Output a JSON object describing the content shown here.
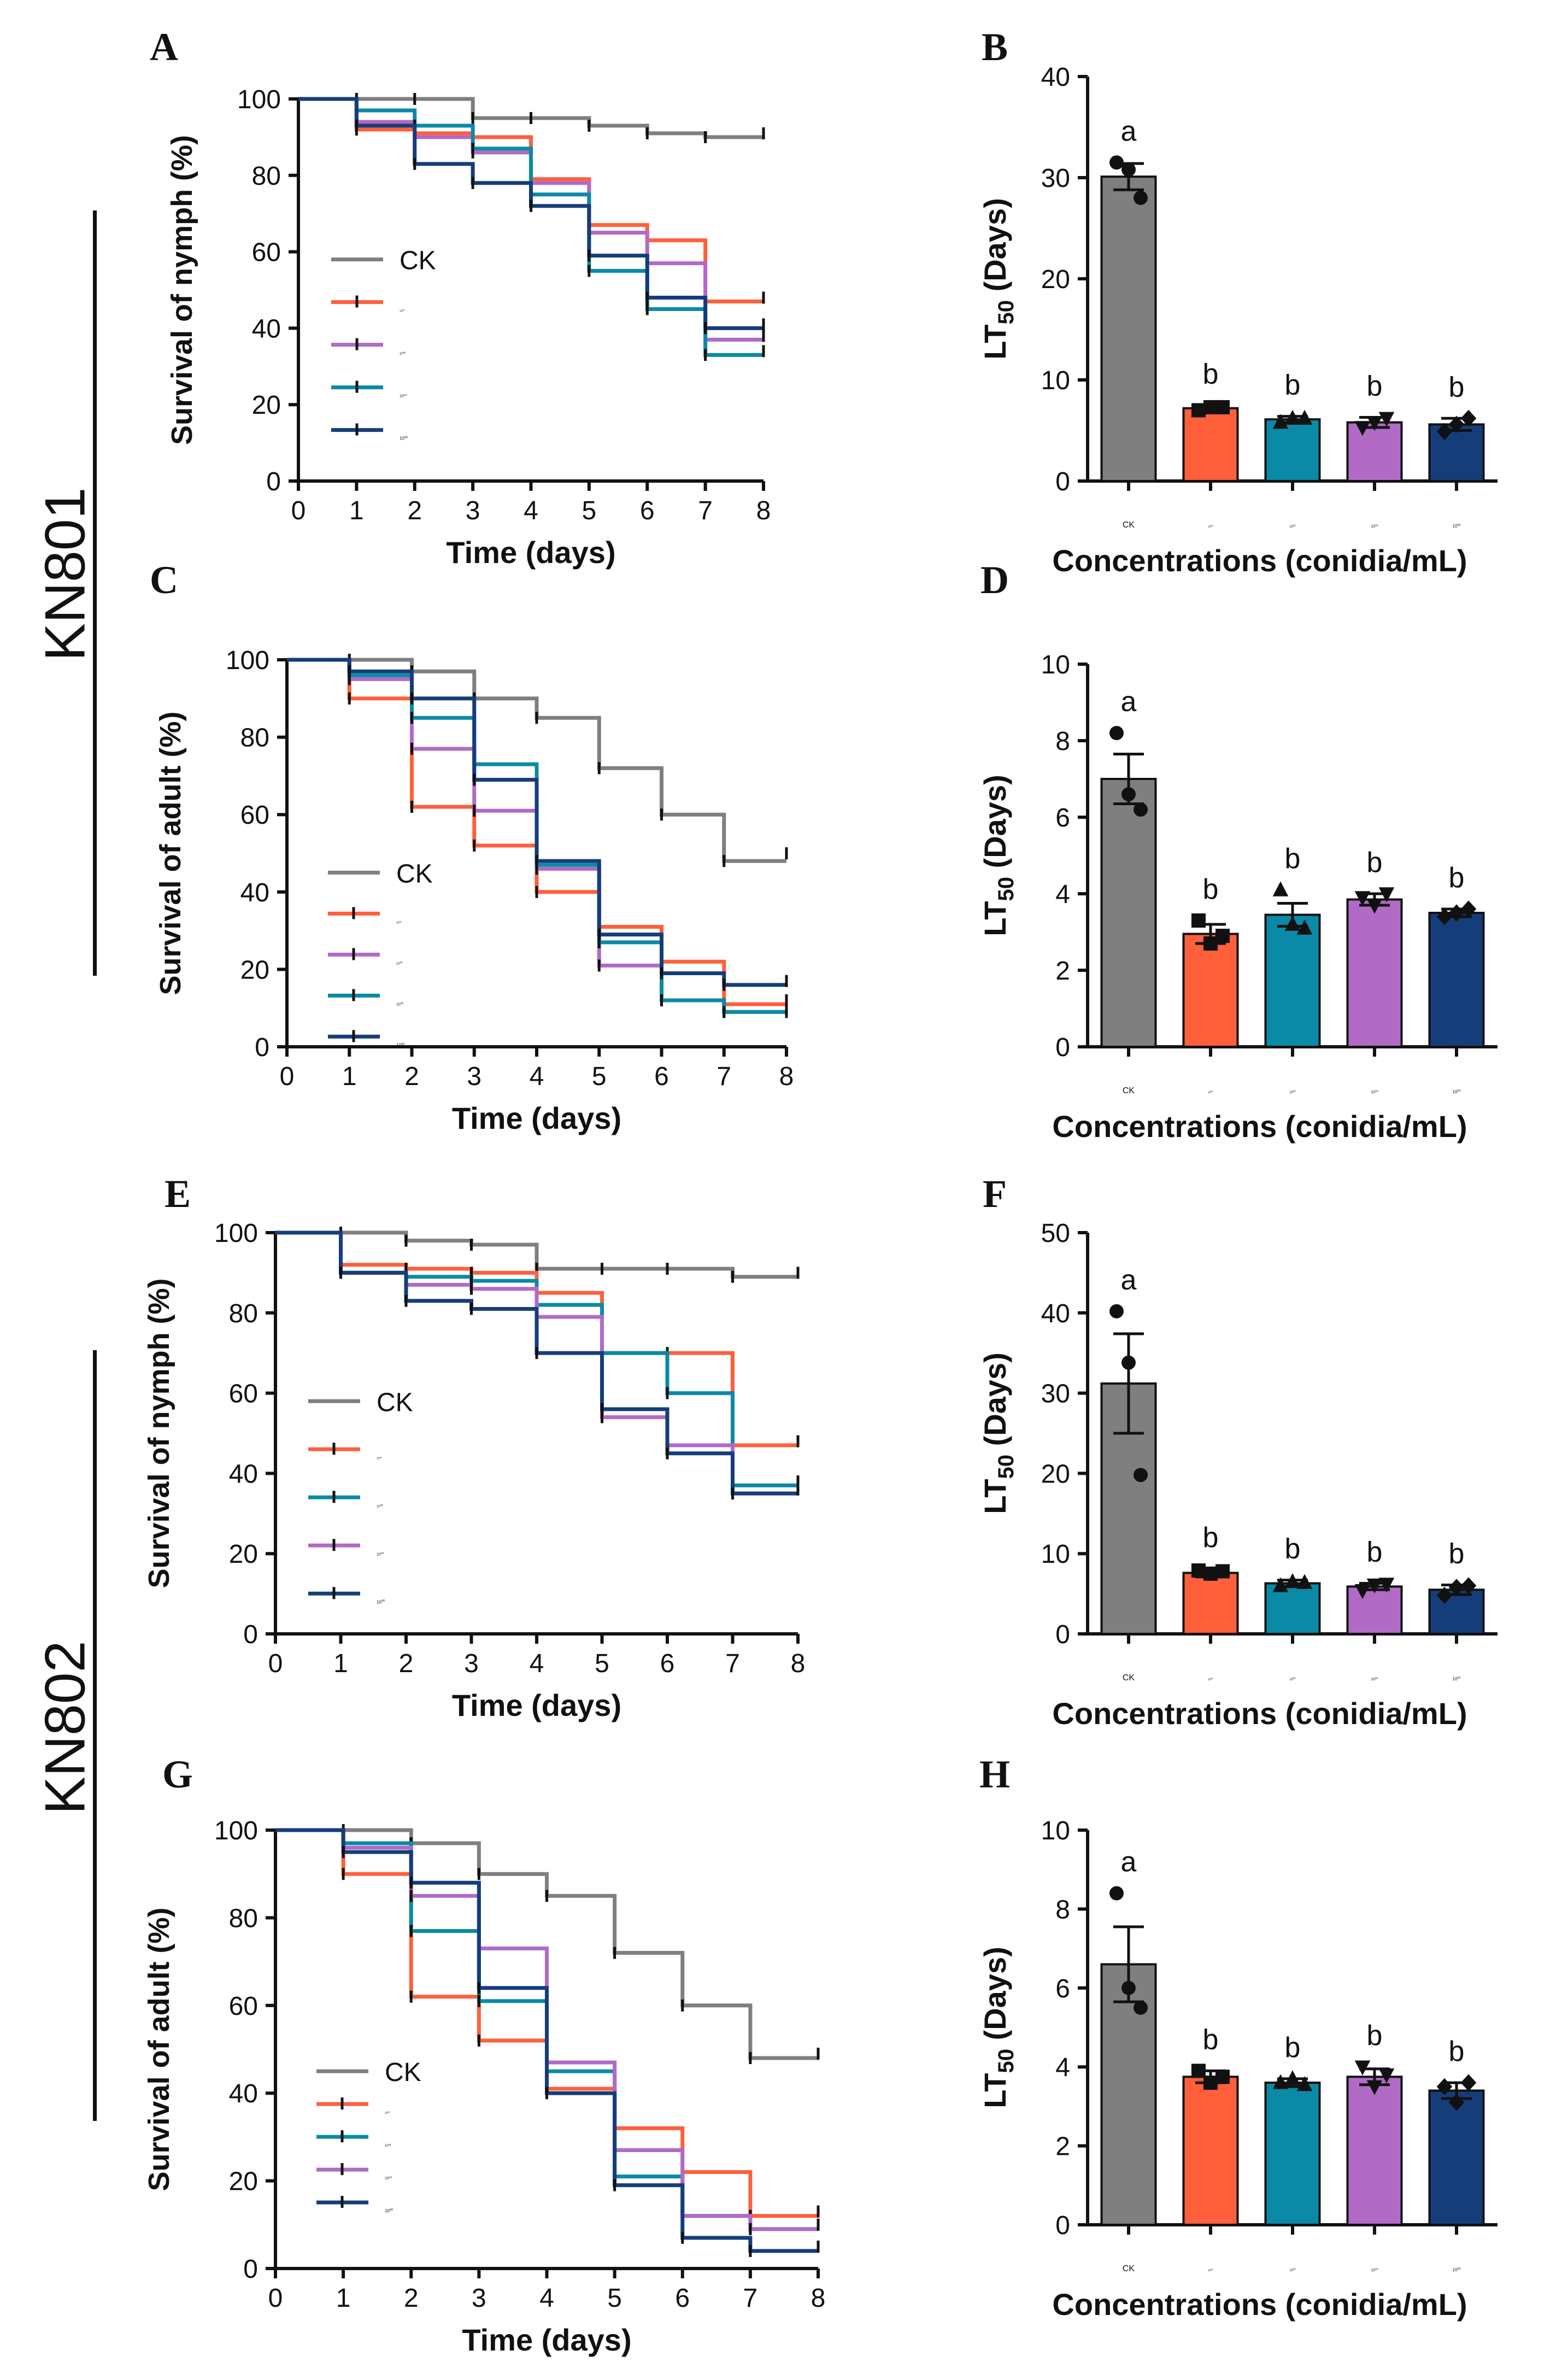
{
  "groups": [
    {
      "label": "KN801"
    },
    {
      "label": "KN802"
    }
  ],
  "colors": {
    "CK": "#7f7f7f",
    "c5": "#ff5f3b",
    "c6": "#0a8aa6",
    "c7": "#b16ac6",
    "c8": "#153d7a"
  },
  "chart_data": [
    {
      "panel": "A",
      "type": "line",
      "step": true,
      "ylabel": "Survival of nymph (%)",
      "xlabel": "Time (days)",
      "xlim": [
        0,
        8
      ],
      "ylim": [
        0,
        100
      ],
      "xticks": [
        0,
        1,
        2,
        3,
        4,
        5,
        6,
        7,
        8
      ],
      "yticks": [
        0,
        20,
        40,
        60,
        80,
        100
      ],
      "legend_position": "center-left",
      "series": [
        {
          "name": "CK",
          "base": "",
          "exp": "",
          "color": "#7f7f7f",
          "values": [
            100,
            100,
            100,
            95,
            95,
            93,
            91,
            90,
            91
          ]
        },
        {
          "name": "10^5",
          "base": "10",
          "exp": "5",
          "color": "#ff5f3b",
          "values": [
            100,
            92,
            91,
            90,
            79,
            67,
            63,
            47,
            48
          ]
        },
        {
          "name": "10^6",
          "base": "10",
          "exp": "6",
          "color": "#b16ac6",
          "values": [
            100,
            94,
            90,
            86,
            78,
            65,
            57,
            37,
            38
          ]
        },
        {
          "name": "10^7",
          "base": "10",
          "exp": "7",
          "color": "#0a8aa6",
          "values": [
            100,
            97,
            93,
            87,
            75,
            55,
            45,
            33,
            34
          ]
        },
        {
          "name": "10^8",
          "base": "10",
          "exp": "8",
          "color": "#153d7a",
          "values": [
            100,
            93,
            83,
            78,
            72,
            59,
            48,
            40,
            41
          ]
        }
      ]
    },
    {
      "panel": "B",
      "type": "bar",
      "ylabel": "LT50 (Days)",
      "ylabel_main": "LT",
      "ylabel_sub": "50",
      "ylabel_rest": " (Days)",
      "xlabel": "Concentrations (conidia/mL)",
      "ylim": [
        0,
        40
      ],
      "yticks": [
        0,
        10,
        20,
        30,
        40
      ],
      "categories": [
        {
          "base": "CK",
          "exp": ""
        },
        {
          "base": "10",
          "exp": "5"
        },
        {
          "base": "10",
          "exp": "6"
        },
        {
          "base": "10",
          "exp": "7"
        },
        {
          "base": "10",
          "exp": "8"
        }
      ],
      "values": [
        30.1,
        7.2,
        6.1,
        5.8,
        5.6
      ],
      "errors": [
        1.3,
        0.3,
        0.3,
        0.5,
        0.6
      ],
      "letters": [
        "a",
        "b",
        "b",
        "b",
        "b"
      ],
      "markers": [
        "circle",
        "square",
        "triangle",
        "triangle-down",
        "diamond"
      ],
      "points": [
        [
          31.5,
          30.8,
          28.0
        ],
        [
          7.0,
          7.3,
          7.3
        ],
        [
          5.8,
          6.2,
          6.2
        ],
        [
          5.3,
          5.8,
          6.2
        ],
        [
          4.9,
          5.6,
          6.2
        ]
      ]
    },
    {
      "panel": "C",
      "type": "line",
      "step": true,
      "ylabel": "Survival of adult (%)",
      "xlabel": "Time (days)",
      "xlim": [
        0,
        8
      ],
      "ylim": [
        0,
        100
      ],
      "xticks": [
        0,
        1,
        2,
        3,
        4,
        5,
        6,
        7,
        8
      ],
      "yticks": [
        0,
        20,
        40,
        60,
        80,
        100
      ],
      "legend_position": "bottom-left",
      "series": [
        {
          "name": "CK",
          "base": "",
          "exp": "",
          "color": "#7f7f7f",
          "values": [
            100,
            100,
            97,
            90,
            85,
            72,
            60,
            48,
            50
          ]
        },
        {
          "name": "10^5",
          "base": "10",
          "exp": "5",
          "color": "#ff5f3b",
          "values": [
            100,
            90,
            62,
            52,
            40,
            31,
            22,
            11,
            12
          ]
        },
        {
          "name": "10^6",
          "base": "10",
          "exp": "6",
          "color": "#b16ac6",
          "values": [
            100,
            95,
            77,
            61,
            46,
            21,
            12,
            9,
            10
          ]
        },
        {
          "name": "10^7",
          "base": "10",
          "exp": "7",
          "color": "#0a8aa6",
          "values": [
            100,
            96,
            85,
            73,
            47,
            27,
            12,
            9,
            9
          ]
        },
        {
          "name": "10^8",
          "base": "10",
          "exp": "8",
          "color": "#153d7a",
          "values": [
            100,
            97,
            90,
            69,
            48,
            29,
            19,
            16,
            17
          ]
        }
      ]
    },
    {
      "panel": "D",
      "type": "bar",
      "ylabel": "LT50 (Days)",
      "ylabel_main": "LT",
      "ylabel_sub": "50",
      "ylabel_rest": " (Days)",
      "xlabel": "Concentrations (conidia/mL)",
      "ylim": [
        0,
        10
      ],
      "yticks": [
        0,
        2,
        4,
        6,
        8,
        10
      ],
      "categories": [
        {
          "base": "CK",
          "exp": ""
        },
        {
          "base": "10",
          "exp": "5"
        },
        {
          "base": "10",
          "exp": "6"
        },
        {
          "base": "10",
          "exp": "7"
        },
        {
          "base": "10",
          "exp": "8"
        }
      ],
      "values": [
        7.0,
        2.95,
        3.45,
        3.85,
        3.5
      ],
      "errors": [
        0.65,
        0.25,
        0.3,
        0.15,
        0.1
      ],
      "letters": [
        "a",
        "b",
        "b",
        "b",
        "b"
      ],
      "markers": [
        "circle",
        "square",
        "triangle",
        "triangle-down",
        "diamond"
      ],
      "points": [
        [
          8.2,
          6.6,
          6.2
        ],
        [
          3.3,
          2.7,
          2.9
        ],
        [
          4.1,
          3.2,
          3.1
        ],
        [
          3.9,
          3.7,
          4.0
        ],
        [
          3.4,
          3.5,
          3.6
        ]
      ]
    },
    {
      "panel": "E",
      "type": "line",
      "step": true,
      "ylabel": "Survival of nymph (%)",
      "xlabel": "Time (days)",
      "xlim": [
        0,
        8
      ],
      "ylim": [
        0,
        100
      ],
      "xticks": [
        0,
        1,
        2,
        3,
        4,
        5,
        6,
        7,
        8
      ],
      "yticks": [
        0,
        20,
        40,
        60,
        80,
        100
      ],
      "legend_position": "center-left",
      "series": [
        {
          "name": "CK",
          "base": "",
          "exp": "",
          "color": "#7f7f7f",
          "values": [
            100,
            100,
            98,
            97,
            91,
            91,
            91,
            89,
            90
          ]
        },
        {
          "name": "10^5",
          "base": "10",
          "exp": "5",
          "color": "#ff5f3b",
          "values": [
            100,
            92,
            91,
            90,
            85,
            70,
            70,
            47,
            48
          ]
        },
        {
          "name": "10^6",
          "base": "10",
          "exp": "6",
          "color": "#0a8aa6",
          "values": [
            100,
            90,
            89,
            88,
            82,
            70,
            60,
            37,
            38
          ]
        },
        {
          "name": "10^7",
          "base": "10",
          "exp": "7",
          "color": "#b16ac6",
          "values": [
            100,
            90,
            87,
            86,
            79,
            54,
            47,
            35,
            36
          ]
        },
        {
          "name": "10^8",
          "base": "10",
          "exp": "8",
          "color": "#153d7a",
          "values": [
            100,
            90,
            83,
            81,
            70,
            56,
            45,
            35,
            36
          ]
        }
      ]
    },
    {
      "panel": "F",
      "type": "bar",
      "ylabel": "LT50 (Days)",
      "ylabel_main": "LT",
      "ylabel_sub": "50",
      "ylabel_rest": " (Days)",
      "xlabel": "Concentrations (conidia/mL)",
      "ylim": [
        0,
        50
      ],
      "yticks": [
        0,
        10,
        20,
        30,
        40,
        50
      ],
      "categories": [
        {
          "base": "CK",
          "exp": ""
        },
        {
          "base": "10",
          "exp": "5"
        },
        {
          "base": "10",
          "exp": "6"
        },
        {
          "base": "10",
          "exp": "7"
        },
        {
          "base": "10",
          "exp": "8"
        }
      ],
      "values": [
        31.2,
        7.6,
        6.3,
        5.9,
        5.5
      ],
      "errors": [
        6.2,
        0.5,
        0.4,
        0.4,
        0.6
      ],
      "letters": [
        "a",
        "b",
        "b",
        "b",
        "b"
      ],
      "markers": [
        "circle",
        "square",
        "triangle",
        "triangle-down",
        "diamond"
      ],
      "points": [
        [
          40.2,
          33.8,
          19.8
        ],
        [
          7.9,
          7.5,
          7.8
        ],
        [
          6.0,
          6.5,
          6.4
        ],
        [
          5.4,
          6.1,
          6.2
        ],
        [
          4.8,
          5.8,
          6.0
        ]
      ]
    },
    {
      "panel": "G",
      "type": "line",
      "step": true,
      "ylabel": "Survival of adult (%)",
      "xlabel": "Time (days)",
      "xlim": [
        0,
        8
      ],
      "ylim": [
        0,
        100
      ],
      "xticks": [
        0,
        1,
        2,
        3,
        4,
        5,
        6,
        7,
        8
      ],
      "yticks": [
        0,
        20,
        40,
        60,
        80,
        100
      ],
      "legend_position": "bottom-left",
      "series": [
        {
          "name": "CK",
          "base": "",
          "exp": "",
          "color": "#7f7f7f",
          "values": [
            100,
            100,
            97,
            90,
            85,
            72,
            60,
            48,
            49
          ]
        },
        {
          "name": "10^5",
          "base": "10",
          "exp": "5",
          "color": "#ff5f3b",
          "values": [
            100,
            90,
            62,
            52,
            41,
            32,
            22,
            12,
            13
          ]
        },
        {
          "name": "10^6",
          "base": "10",
          "exp": "6",
          "color": "#0a8aa6",
          "values": [
            100,
            97,
            77,
            61,
            45,
            21,
            12,
            9,
            10
          ]
        },
        {
          "name": "10^7",
          "base": "10",
          "exp": "7",
          "color": "#b16ac6",
          "values": [
            100,
            96,
            85,
            73,
            47,
            27,
            12,
            9,
            10
          ]
        },
        {
          "name": "10^8",
          "base": "10",
          "exp": "8",
          "color": "#153d7a",
          "values": [
            100,
            95,
            88,
            64,
            40,
            19,
            7,
            4,
            5
          ]
        }
      ]
    },
    {
      "panel": "H",
      "type": "bar",
      "ylabel": "LT50 (Days)",
      "ylabel_main": "LT",
      "ylabel_sub": "50",
      "ylabel_rest": " (Days)",
      "xlabel": "Concentrations (conidia/mL)",
      "ylim": [
        0,
        10
      ],
      "yticks": [
        0,
        2,
        4,
        6,
        8,
        10
      ],
      "categories": [
        {
          "base": "CK",
          "exp": ""
        },
        {
          "base": "10",
          "exp": "5"
        },
        {
          "base": "10",
          "exp": "6"
        },
        {
          "base": "10",
          "exp": "7"
        },
        {
          "base": "10",
          "exp": "8"
        }
      ],
      "values": [
        6.6,
        3.75,
        3.6,
        3.75,
        3.4
      ],
      "errors": [
        0.95,
        0.15,
        0.1,
        0.2,
        0.2
      ],
      "letters": [
        "a",
        "b",
        "b",
        "b",
        "b"
      ],
      "markers": [
        "circle",
        "square",
        "triangle",
        "triangle-down",
        "diamond"
      ],
      "points": [
        [
          8.4,
          6.0,
          5.5
        ],
        [
          3.9,
          3.6,
          3.75
        ],
        [
          3.6,
          3.7,
          3.55
        ],
        [
          4.0,
          3.5,
          3.8
        ],
        [
          3.5,
          3.1,
          3.6
        ]
      ]
    }
  ]
}
